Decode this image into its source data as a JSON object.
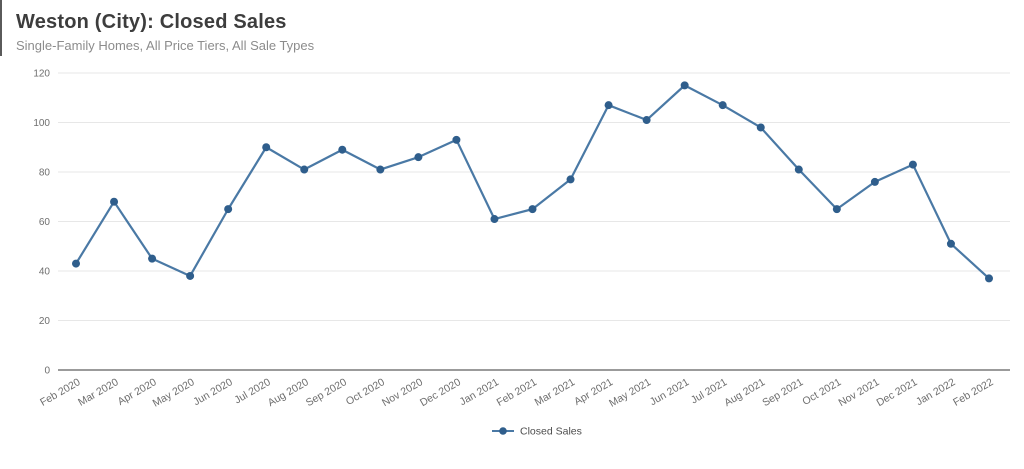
{
  "chart_data": {
    "type": "line",
    "title": "Weston (City): Closed Sales",
    "subtitle": "Single-Family Homes, All Price Tiers, All Sale Types",
    "categories": [
      "Feb 2020",
      "Mar 2020",
      "Apr 2020",
      "May 2020",
      "Jun 2020",
      "Jul 2020",
      "Aug 2020",
      "Sep 2020",
      "Oct 2020",
      "Nov 2020",
      "Dec 2020",
      "Jan 2021",
      "Feb 2021",
      "Mar 2021",
      "Apr 2021",
      "May 2021",
      "Jun 2021",
      "Jul 2021",
      "Aug 2021",
      "Sep 2021",
      "Oct 2021",
      "Nov 2021",
      "Dec 2021",
      "Jan 2022",
      "Feb 2022"
    ],
    "series": [
      {
        "name": "Closed Sales",
        "values": [
          43,
          68,
          45,
          38,
          65,
          90,
          81,
          89,
          81,
          86,
          93,
          61,
          65,
          77,
          107,
          101,
          115,
          107,
          98,
          81,
          65,
          76,
          83,
          51,
          37
        ]
      }
    ],
    "xlabel": "",
    "ylabel": "",
    "ylim": [
      0,
      120
    ],
    "yticks": [
      0,
      20,
      40,
      60,
      80,
      100,
      120
    ],
    "grid": true,
    "legend_position": "bottom",
    "colors": {
      "line": "#4a79a5",
      "marker": "#2f5e8c",
      "grid": "#e7e7e7",
      "axis": "#7a7a7a",
      "tick_text": "#6e6e6e",
      "title": "#3d3d3d",
      "subtitle": "#8c8c8c",
      "legend_text": "#4d4d4d"
    }
  },
  "legend": {
    "items": [
      {
        "label": "Closed Sales"
      }
    ]
  }
}
